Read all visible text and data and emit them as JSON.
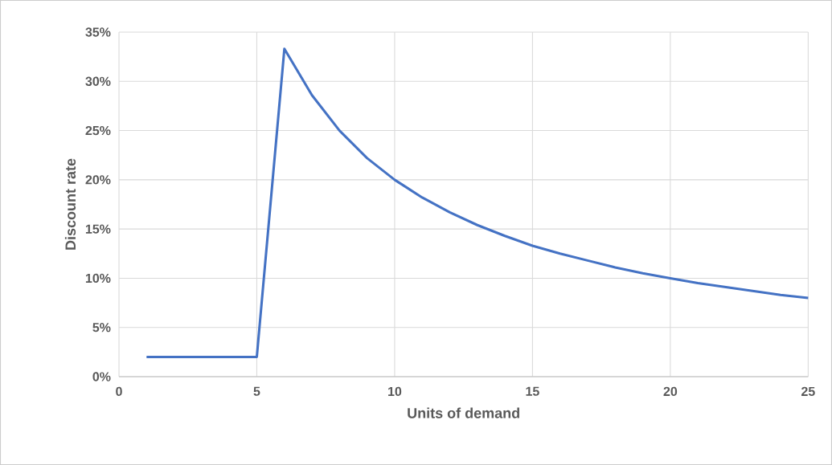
{
  "chart_data": {
    "type": "line",
    "xlabel": "Units of demand",
    "ylabel": "Discount rate",
    "x": [
      1,
      2,
      3,
      4,
      5,
      6,
      7,
      8,
      9,
      10,
      11,
      12,
      13,
      14,
      15,
      16,
      17,
      18,
      19,
      20,
      21,
      22,
      23,
      24,
      25
    ],
    "series": [
      {
        "color": "#4472c4",
        "values": [
          2,
          2,
          2,
          2,
          2,
          33.3,
          28.6,
          25,
          22.2,
          20,
          18.2,
          16.7,
          15.4,
          14.3,
          13.3,
          12.5,
          11.8,
          11.1,
          10.5,
          10,
          9.5,
          9.1,
          8.7,
          8.3,
          8
        ]
      }
    ],
    "xlim": [
      0,
      25
    ],
    "xticks": [
      0,
      5,
      10,
      15,
      20,
      25
    ],
    "ylim": [
      0,
      35
    ],
    "yticks": [
      {
        "value": 0,
        "label": "0%"
      },
      {
        "value": 5,
        "label": "5%"
      },
      {
        "value": 10,
        "label": "10%"
      },
      {
        "value": 15,
        "label": "15%"
      },
      {
        "value": 20,
        "label": "20%"
      },
      {
        "value": 25,
        "label": "25%"
      },
      {
        "value": 30,
        "label": "30%"
      },
      {
        "value": 35,
        "label": "35%"
      }
    ],
    "grid": true
  }
}
